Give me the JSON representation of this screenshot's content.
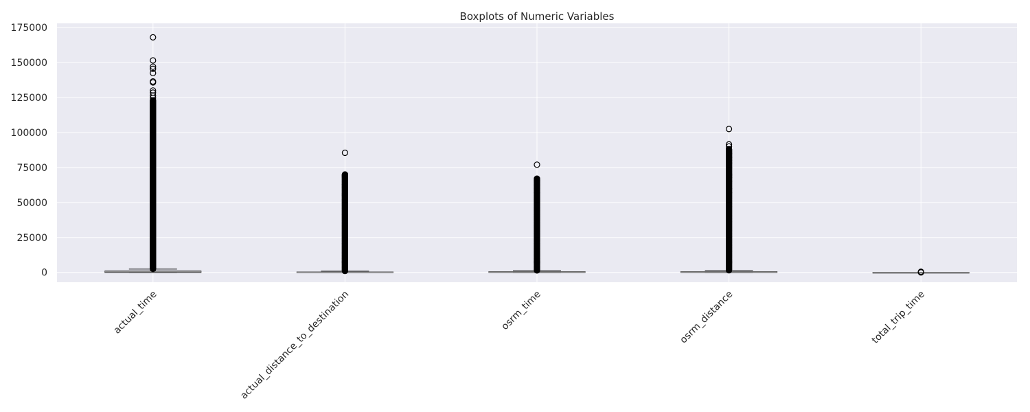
{
  "chart_data": {
    "type": "boxplot",
    "title": "Boxplots of Numeric Variables",
    "xlabel": "",
    "ylabel": "",
    "ylim": [
      -7000,
      178000
    ],
    "y_ticks": [
      0,
      25000,
      50000,
      75000,
      100000,
      125000,
      150000,
      175000
    ],
    "y_tick_labels": [
      "0",
      "25000",
      "50000",
      "75000",
      "100000",
      "125000",
      "150000",
      "175000"
    ],
    "grid": true,
    "legend": "none",
    "colors": {
      "background": "#eaeaf2",
      "grid": "#ffffff",
      "box": "#262626",
      "median": "#8c8c8c",
      "outlier": "#000000"
    },
    "categories": [
      "actual_time",
      "actual_distance_to_destination",
      "osrm_time",
      "osrm_distance",
      "total_trip_time"
    ],
    "series": [
      {
        "category": "actual_time",
        "min": 0,
        "q1": 0,
        "median": 500,
        "q3": 1000,
        "whisker_high": 2400,
        "outlier_range": [
          2500,
          123000
        ],
        "outliers": [
          168000,
          151500,
          147000,
          145500,
          142500,
          136500,
          135800,
          130000,
          128500,
          126500,
          124800,
          123000,
          89500,
          87000,
          85600,
          83000,
          33000
        ]
      },
      {
        "category": "actual_distance_to_destination",
        "min": 0,
        "q1": 0,
        "median": 200,
        "q3": 400,
        "whisker_high": 900,
        "outlier_range": [
          1000,
          70000
        ],
        "outliers": [
          85500,
          70000,
          69000,
          68000,
          63000,
          61000,
          56000,
          55000
        ]
      },
      {
        "category": "osrm_time",
        "min": 0,
        "q1": 0,
        "median": 300,
        "q3": 600,
        "whisker_high": 1300,
        "outlier_range": [
          1400,
          67000
        ],
        "outliers": [
          77000,
          67000,
          66000,
          64000,
          62000,
          60000,
          57000,
          53000
        ]
      },
      {
        "category": "osrm_distance",
        "min": 0,
        "q1": 0,
        "median": 300,
        "q3": 600,
        "whisker_high": 1400,
        "outlier_range": [
          1500,
          88000
        ],
        "outliers": [
          102500,
          91500,
          90000,
          88000,
          85000,
          82000,
          80000,
          78000,
          75000,
          68000,
          65000,
          60000,
          57000
        ]
      },
      {
        "category": "total_trip_time",
        "min": 0,
        "q1": 0,
        "median": 0,
        "q3": 0,
        "whisker_high": 0,
        "outlier_range": [
          0,
          0
        ],
        "outliers": [
          0,
          200,
          500
        ]
      }
    ]
  }
}
